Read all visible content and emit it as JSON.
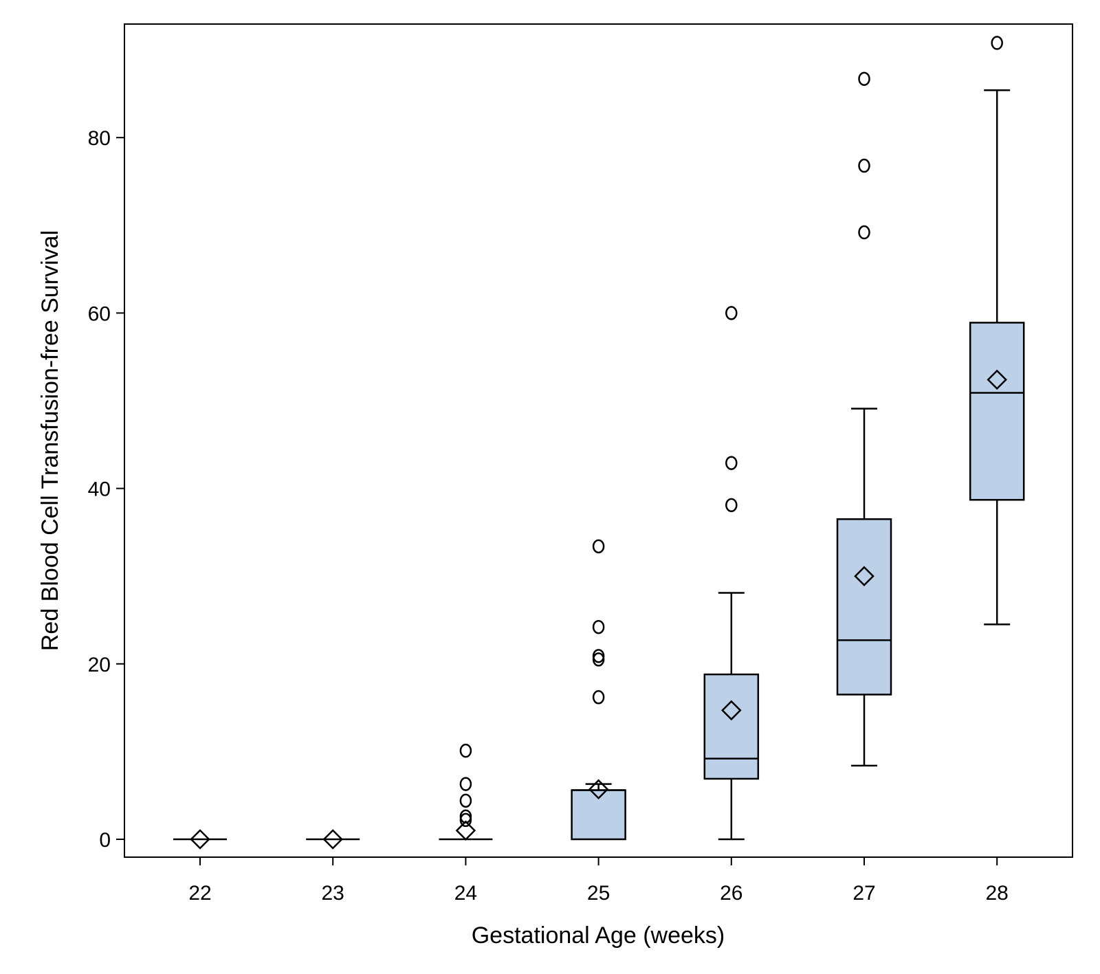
{
  "chart_data": {
    "type": "box",
    "xlabel": "Gestational Age (weeks)",
    "ylabel": "Red Blood Cell Transfusion-free Survival",
    "x_ticks": [
      "22",
      "23",
      "24",
      "25",
      "26",
      "27",
      "28"
    ],
    "y_ticks": [
      "0",
      "20",
      "40",
      "60",
      "80"
    ],
    "ylim": [
      -2,
      93
    ],
    "grid": false,
    "box_fill_color": "#bcd0e8",
    "line_color": "#000000",
    "groups": [
      {
        "category": "22",
        "min": 0,
        "q1": 0,
        "median": 0,
        "q3": 0,
        "max": 0,
        "mean": 0,
        "outliers": []
      },
      {
        "category": "23",
        "min": 0,
        "q1": 0,
        "median": 0,
        "q3": 0,
        "max": 0,
        "mean": 0,
        "outliers": []
      },
      {
        "category": "24",
        "min": 0,
        "q1": 0,
        "median": 0,
        "q3": 0,
        "max": 0,
        "mean": 1.0,
        "outliers": [
          2.2,
          2.6,
          4.4,
          6.3,
          10.1
        ]
      },
      {
        "category": "25",
        "min": 0,
        "q1": 0,
        "median": 5.6,
        "q3": 5.6,
        "max": 6.3,
        "mean": 5.7,
        "outliers": [
          16.2,
          20.5,
          20.9,
          24.2,
          33.4
        ]
      },
      {
        "category": "26",
        "min": 0,
        "q1": 6.9,
        "median": 9.2,
        "q3": 18.8,
        "max": 28.1,
        "mean": 14.7,
        "outliers": [
          38.1,
          42.9,
          60.0
        ]
      },
      {
        "category": "27",
        "min": 8.4,
        "q1": 16.5,
        "median": 22.7,
        "q3": 36.5,
        "max": 49.1,
        "mean": 30.0,
        "outliers": [
          69.2,
          76.8,
          86.7
        ]
      },
      {
        "category": "28",
        "min": 24.5,
        "q1": 38.7,
        "median": 50.9,
        "q3": 58.9,
        "max": 85.4,
        "mean": 52.4,
        "outliers": [
          90.8
        ]
      }
    ]
  }
}
